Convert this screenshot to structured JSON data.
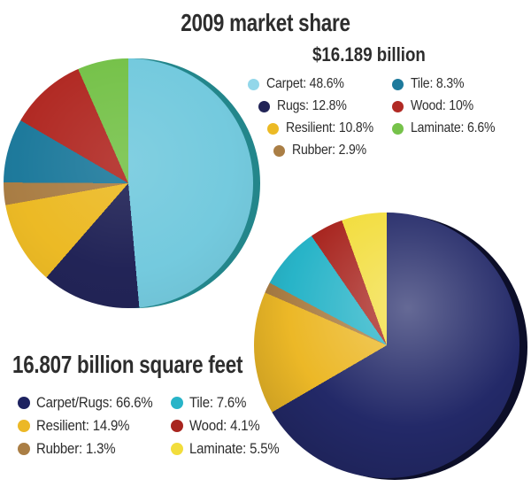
{
  "page": {
    "background_color": "#ffffff",
    "text_color": "#2d2d2d"
  },
  "chart_data": [
    {
      "type": "pie",
      "title": "2009 market share",
      "subtitle": "$16.189 billion",
      "start_angle_deg": 0,
      "direction": "clockwise",
      "rim_color": "#23868b",
      "legend_position": "right-of-pie, two columns",
      "slices": [
        {
          "label": "Carpet",
          "value_pct": 48.6,
          "display": "Carpet: 48.6%",
          "color": "#74cade",
          "legend_color": "#92d7ea"
        },
        {
          "label": "Rugs",
          "value_pct": 12.8,
          "display": "Rugs: 12.8%",
          "color": "#222457",
          "legend_color": "#222457"
        },
        {
          "label": "Resilient",
          "value_pct": 10.8,
          "display": "Resilient: 10.8%",
          "color": "#ecba25",
          "legend_color": "#ecba25"
        },
        {
          "label": "Rubber",
          "value_pct": 2.9,
          "display": "Rubber: 2.9%",
          "color": "#aa7e45",
          "legend_color": "#aa7e45"
        },
        {
          "label": "Tile",
          "value_pct": 8.3,
          "display": "Tile: 8.3%",
          "color": "#1e7a9c",
          "legend_color": "#1e7a9c"
        },
        {
          "label": "Wood",
          "value_pct": 10,
          "display": "Wood: 10%",
          "color": "#b12a24",
          "legend_color": "#b12a24"
        },
        {
          "label": "Laminate",
          "value_pct": 6.6,
          "display": "Laminate: 6.6%",
          "color": "#76c24a",
          "legend_color": "#76c24a"
        }
      ]
    },
    {
      "type": "pie",
      "title": "16.807 billion square feet",
      "subtitle": "",
      "start_angle_deg": 0,
      "direction": "clockwise",
      "rim_color": "#0c0e28",
      "legend_position": "left-of-pie, two columns",
      "slices": [
        {
          "label": "Carpet/Rugs",
          "value_pct": 66.6,
          "display": "Carpet/Rugs: 66.6%",
          "color": "#232968",
          "legend_color": "#1d2260"
        },
        {
          "label": "Resilient",
          "value_pct": 14.9,
          "display": "Resilient: 14.9%",
          "color": "#ecb827",
          "legend_color": "#ecb827"
        },
        {
          "label": "Rubber",
          "value_pct": 1.3,
          "display": "Rubber: 1.3%",
          "color": "#aa7e45",
          "legend_color": "#aa7e45"
        },
        {
          "label": "Tile",
          "value_pct": 7.6,
          "display": "Tile: 7.6%",
          "color": "#28b4c8",
          "legend_color": "#28b4c8"
        },
        {
          "label": "Wood",
          "value_pct": 4.1,
          "display": "Wood: 4.1%",
          "color": "#a8251f",
          "legend_color": "#a8251f"
        },
        {
          "label": "Laminate",
          "value_pct": 5.5,
          "display": "Laminate: 5.5%",
          "color": "#f2dd3c",
          "legend_color": "#f2dd3c"
        }
      ]
    }
  ]
}
